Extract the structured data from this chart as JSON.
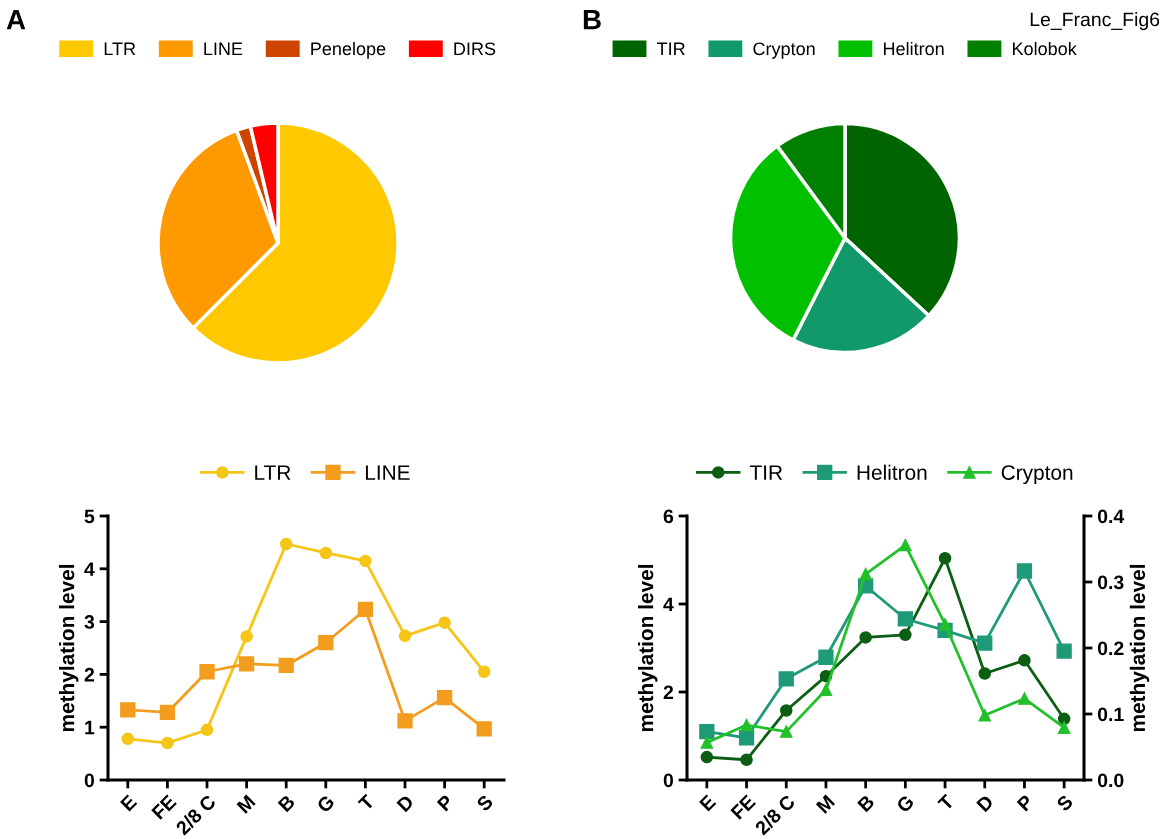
{
  "chart_data": [
    {
      "type": "pie",
      "title": "A",
      "categories": [
        "LTR",
        "LINE",
        "Penelope",
        "DIRS"
      ],
      "values": [
        62.5,
        31.9,
        1.9,
        3.7
      ],
      "colors": [
        "#ffc800",
        "#ff9900",
        "#cc4400",
        "#ff0000"
      ],
      "legend": "top"
    },
    {
      "type": "pie",
      "title": "B",
      "categories": [
        "TIR",
        "Crypton",
        "Helitron",
        "Kolobok"
      ],
      "values": [
        36.9,
        20.6,
        32.4,
        10.1
      ],
      "colors": [
        "#006400",
        "#11996a",
        "#00c000",
        "#008000"
      ],
      "legend": "top",
      "annotations": [
        "Le_Franc_Fig6"
      ]
    },
    {
      "type": "line",
      "categories": [
        "E",
        "FE",
        "2/8 C",
        "M",
        "B",
        "G",
        "T",
        "D",
        "P",
        "S"
      ],
      "ylabel": "methylation level",
      "ylim": [
        0,
        5
      ],
      "yticks": [
        0,
        1,
        2,
        3,
        4,
        5
      ],
      "legend": "top",
      "grid": false,
      "series": [
        {
          "name": "LTR",
          "color": "#f5c518",
          "marker": "circle",
          "values": [
            0.78,
            0.7,
            0.95,
            2.72,
            4.47,
            4.3,
            4.15,
            2.73,
            2.98,
            2.05
          ]
        },
        {
          "name": "LINE",
          "color": "#f39c1e",
          "marker": "square",
          "values": [
            1.33,
            1.28,
            2.05,
            2.2,
            2.17,
            2.6,
            3.23,
            1.12,
            1.56,
            0.97
          ]
        }
      ]
    },
    {
      "type": "line",
      "categories": [
        "E",
        "FE",
        "2/8 C",
        "M",
        "B",
        "G",
        "T",
        "D",
        "P",
        "S"
      ],
      "ylabel": "methylation level",
      "y2label": "methylation level",
      "ylim": [
        0,
        6
      ],
      "yticks": [
        0,
        2,
        4,
        6
      ],
      "y2lim": [
        0,
        0.4
      ],
      "y2ticks": [
        {
          "value": 0,
          "label": "0.0"
        },
        0.1,
        0.2,
        0.3,
        0.4
      ],
      "legend": "top",
      "grid": false,
      "series": [
        {
          "name": "TIR",
          "color": "#0b5e12",
          "marker": "circle",
          "values": [
            0.52,
            0.46,
            1.58,
            2.36,
            3.24,
            3.3,
            5.04,
            2.42,
            2.72,
            1.39
          ]
        },
        {
          "name": "Helitron",
          "color": "#1f9a78",
          "marker": "square",
          "values": [
            1.1,
            0.96,
            2.3,
            2.79,
            4.41,
            3.66,
            3.4,
            3.11,
            4.75,
            2.93
          ]
        },
        {
          "name": "Crypton",
          "color": "#22c02a",
          "marker": "triangle",
          "values": [
            0.85,
            1.25,
            1.1,
            2.05,
            4.68,
            5.34,
            3.54,
            1.47,
            1.85,
            1.19
          ]
        }
      ]
    }
  ]
}
